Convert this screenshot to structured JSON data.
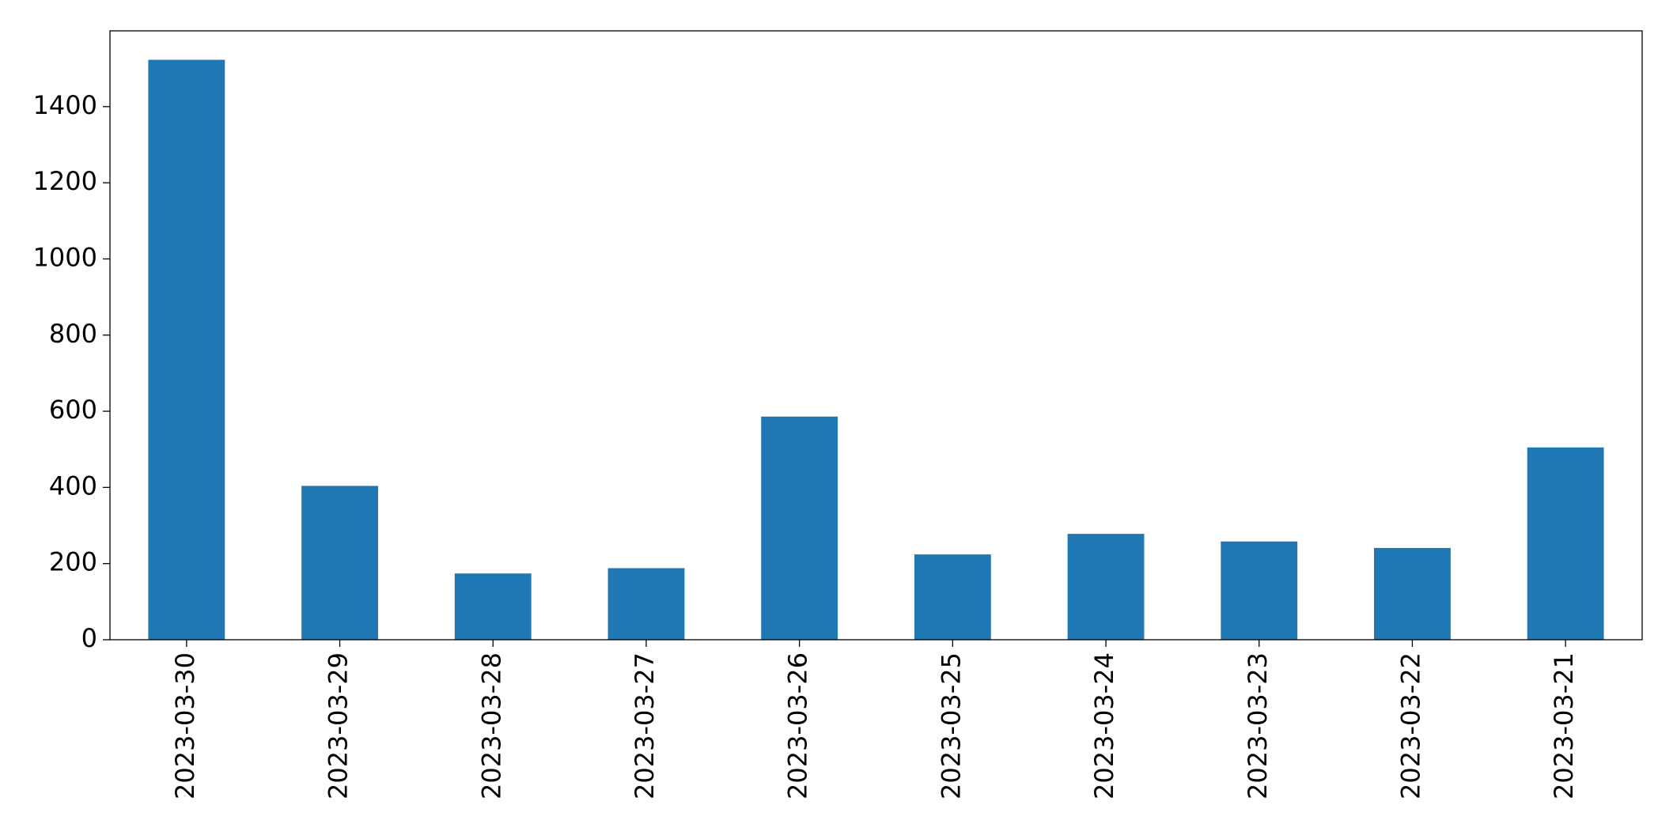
{
  "chart_data": {
    "type": "bar",
    "categories": [
      "2023-03-30",
      "2023-03-29",
      "2023-03-28",
      "2023-03-27",
      "2023-03-26",
      "2023-03-25",
      "2023-03-24",
      "2023-03-23",
      "2023-03-22",
      "2023-03-21"
    ],
    "values": [
      1523,
      404,
      174,
      188,
      586,
      224,
      278,
      258,
      241,
      505
    ],
    "color": "#1f77b4",
    "ylim": [
      0,
      1599
    ],
    "yticks": [
      0,
      200,
      400,
      600,
      800,
      1000,
      1200,
      1400
    ],
    "grid": false
  }
}
